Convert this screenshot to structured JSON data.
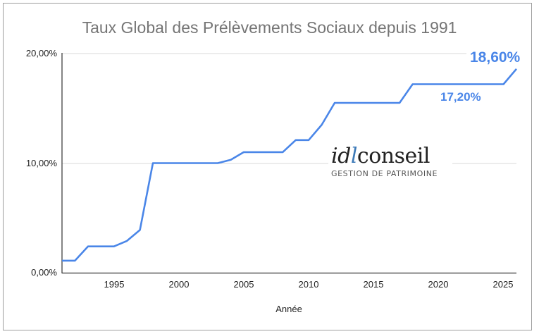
{
  "chart_data": {
    "type": "line",
    "title": "Taux Global des Prélèvements Sociaux depuis 1991",
    "xlabel": "Année",
    "ylabel": "",
    "x": [
      1991,
      1992,
      1993,
      1994,
      1995,
      1996,
      1997,
      1998,
      1999,
      2000,
      2001,
      2002,
      2003,
      2004,
      2005,
      2006,
      2007,
      2008,
      2009,
      2010,
      2011,
      2012,
      2013,
      2014,
      2015,
      2016,
      2017,
      2018,
      2019,
      2020,
      2021,
      2022,
      2023,
      2024,
      2025,
      2026
    ],
    "series": [
      {
        "name": "Taux global",
        "color": "#4a86e8",
        "values": [
          1.1,
          1.1,
          2.4,
          2.4,
          2.4,
          2.9,
          3.9,
          10.0,
          10.0,
          10.0,
          10.0,
          10.0,
          10.0,
          10.3,
          11.0,
          11.0,
          11.0,
          11.0,
          12.1,
          12.1,
          13.5,
          15.5,
          15.5,
          15.5,
          15.5,
          15.5,
          15.5,
          17.2,
          17.2,
          17.2,
          17.2,
          17.2,
          17.2,
          17.2,
          17.2,
          18.6
        ]
      }
    ],
    "xlim": [
      1991,
      2026
    ],
    "ylim": [
      0,
      20
    ],
    "xticks": [
      "1995",
      "2000",
      "2005",
      "2010",
      "2015",
      "2020",
      "2025"
    ],
    "yticks": [
      "0,00%",
      "10,00%",
      "20,00%"
    ],
    "grid": true,
    "annotations": [
      {
        "text": "18,60%",
        "x": 2026,
        "y": 18.6
      },
      {
        "text": "17,20%",
        "x": 2020,
        "y": 17.2
      }
    ],
    "legend": "none"
  },
  "title": "Taux Global des Prélèvements Sociaux depuis 1991",
  "axis": {
    "xlabel": "Année",
    "yticks": [
      "0,00%",
      "10,00%",
      "20,00%"
    ],
    "xticks": [
      "1995",
      "2000",
      "2005",
      "2010",
      "2015",
      "2020",
      "2025"
    ]
  },
  "annotations": {
    "end_value": "18,60%",
    "plateau_value": "17,20%"
  },
  "logo": {
    "part1": "id",
    "part2": "l",
    "part3": "conseil",
    "subtitle": "GESTION DE PATRIMOINE"
  },
  "colors": {
    "line": "#4a86e8",
    "title": "#757575",
    "logo_accent": "#3d7ab8"
  }
}
